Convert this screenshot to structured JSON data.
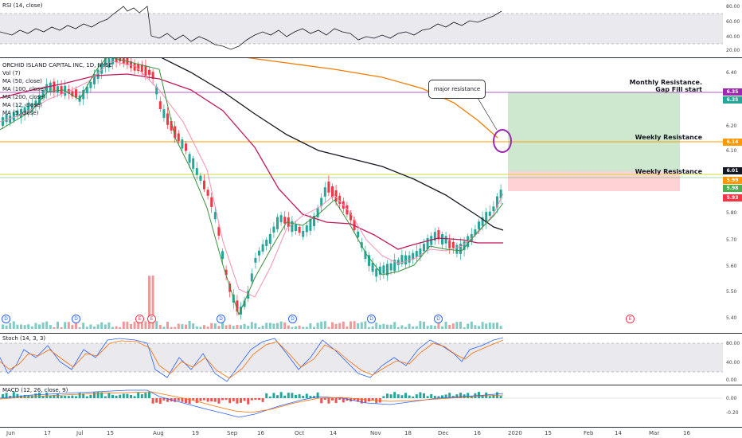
{
  "rsi": {
    "label": "RSI (14, close)",
    "ticks": [
      "80.00",
      "60.00",
      "40.00",
      "20.00"
    ]
  },
  "main": {
    "title": "ORCHID ISLAND CAPITAL INC, 1D, NYSE",
    "legend": [
      "Vol (7)",
      "MA (50, close)",
      "MA (100, close)",
      "MA (200, close)",
      "MA (12, close)",
      "MA (5, close)"
    ],
    "ticks": [
      "6.40",
      "6.20",
      "6.10",
      "5.80",
      "5.70",
      "5.60",
      "5.50",
      "5.40"
    ],
    "callout": "major resistance",
    "annotations": {
      "monthly1": "Monthly Resistance.",
      "monthly2": "Gap Fill start",
      "weekly1": "Weekly Resistance",
      "weekly2": "Weekly Resistance"
    },
    "badges": [
      {
        "text": "6.35",
        "color": "#9c27b0"
      },
      {
        "text": "6.35",
        "color": "#26a69a"
      },
      {
        "text": "6.14",
        "color": "#ff9800"
      },
      {
        "text": "6.01",
        "color": "#131722"
      },
      {
        "text": "5.99",
        "color": "#ff9800"
      },
      {
        "text": "5.98",
        "color": "#4caf50"
      },
      {
        "text": "5.93",
        "color": "#f23645"
      }
    ]
  },
  "events": [
    "D",
    "E",
    "E",
    "D",
    "D",
    "D",
    "D",
    "D",
    "E"
  ],
  "stoch": {
    "label": "Stoch (14, 3, 3)",
    "ticks": [
      "80.00",
      "40.00",
      "0.00"
    ]
  },
  "macd": {
    "label": "MACD (12, 26, close, 9)",
    "ticks": [
      "0.00",
      "-0.20"
    ]
  },
  "xaxis": [
    "Jun",
    "17",
    "Jul",
    "15",
    "Aug",
    "19",
    "Sep",
    "16",
    "Oct",
    "14",
    "Nov",
    "18",
    "Dec",
    "16",
    "2020",
    "15",
    "Feb",
    "14",
    "Mar",
    "16"
  ],
  "colors": {
    "up": "#26a69a",
    "down": "#f23645",
    "ma200": "#f57c00",
    "ma100": "#131722",
    "ma50": "#c2185b",
    "ma12": "#f48fb1",
    "ma5": "#388e3c"
  }
}
